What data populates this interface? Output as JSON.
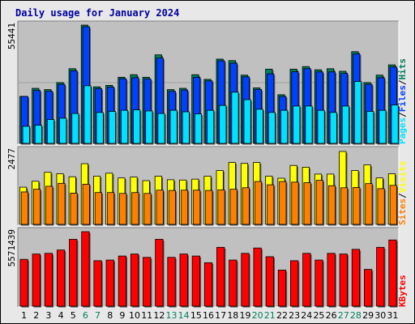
{
  "chart_data": {
    "type": "bar",
    "title": "Daily usage for January 2024",
    "categories": [
      "1",
      "2",
      "3",
      "4",
      "5",
      "6",
      "7",
      "8",
      "9",
      "10",
      "11",
      "12",
      "13",
      "14",
      "15",
      "16",
      "17",
      "18",
      "19",
      "20",
      "21",
      "22",
      "23",
      "24",
      "25",
      "26",
      "27",
      "28",
      "29",
      "30",
      "31"
    ],
    "weekend_days": [
      6,
      7,
      13,
      14,
      20,
      21,
      27,
      28
    ],
    "panels": [
      {
        "name": "hits-files-pages",
        "y_max_label": "55441",
        "y_max": 55441,
        "legend": [
          "Pages",
          "/",
          "Files",
          "/",
          "Hits"
        ],
        "series": [
          {
            "name": "Hits",
            "color": "#00805c",
            "values": [
              22000,
              25800,
              25200,
              28500,
              35000,
              55441,
              26500,
              27200,
              31000,
              32200,
              31000,
              41500,
              25200,
              25800,
              32200,
              30000,
              39500,
              38800,
              32000,
              26000,
              34800,
              22800,
              34800,
              36000,
              34500,
              35000,
              33800,
              43000,
              28500,
              32000,
              36800
            ]
          },
          {
            "name": "Files",
            "color": "#0040ff",
            "values": [
              22000,
              24800,
              24400,
              27700,
              34000,
              54700,
              25700,
              26400,
              30300,
              30800,
              30200,
              40000,
              24400,
              25000,
              31000,
              29300,
              38700,
              37600,
              31200,
              25300,
              32600,
              22000,
              33600,
              35000,
              33500,
              33500,
              32800,
              42000,
              27700,
              30800,
              35800
            ]
          },
          {
            "name": "Pages",
            "color": "#00e0ff",
            "values": [
              8000,
              8500,
              11200,
              11800,
              14000,
              27000,
              14500,
              15000,
              15500,
              15700,
              15200,
              14000,
              15500,
              14800,
              13800,
              15500,
              17800,
              24000,
              20500,
              16000,
              14500,
              15500,
              17500,
              17500,
              15500,
              14500,
              17500,
              29000,
              15000,
              15500,
              18000
            ]
          }
        ]
      },
      {
        "name": "visits-sites",
        "y_max_label": "2477",
        "y_max": 2477,
        "legend": [
          "Sites",
          "/",
          "Visits"
        ],
        "series": [
          {
            "name": "Visits",
            "color": "#ffff00",
            "values": [
              1250,
              1450,
              1750,
              1700,
              1600,
              2040,
              1620,
              1720,
              1560,
              1590,
              1470,
              1620,
              1500,
              1490,
              1520,
              1620,
              1810,
              2080,
              2050,
              2080,
              1620,
              1550,
              1980,
              1920,
              1690,
              1690,
              2450,
              1810,
              2000,
              1560,
              1700
            ]
          },
          {
            "name": "Sites",
            "color": "#ff8000",
            "values": [
              1090,
              1180,
              1280,
              1380,
              1050,
              1350,
              1070,
              1070,
              1040,
              1070,
              1040,
              1150,
              1140,
              1150,
              1150,
              1140,
              1160,
              1180,
              1230,
              1440,
              1330,
              1440,
              1420,
              1400,
              1480,
              1300,
              1230,
              1240,
              1370,
              1200,
              1310
            ]
          }
        ]
      },
      {
        "name": "kbytes",
        "y_max_label": "5571439",
        "y_max": 5571439,
        "legend": [
          "KBytes"
        ],
        "series": [
          {
            "name": "KBytes",
            "color": "#ff0000",
            "values": [
              3500000,
              3900000,
              3950000,
              4200000,
              5000000,
              5571439,
              3400000,
              3450000,
              3750000,
              3900000,
              3650000,
              5000000,
              3650000,
              3900000,
              3750000,
              3250000,
              4400000,
              3450000,
              3950000,
              4350000,
              3700000,
              2700000,
              3400000,
              3950000,
              3450000,
              3950000,
              3900000,
              4250000,
              2750000,
              4400000,
              4950000
            ]
          }
        ]
      }
    ]
  }
}
